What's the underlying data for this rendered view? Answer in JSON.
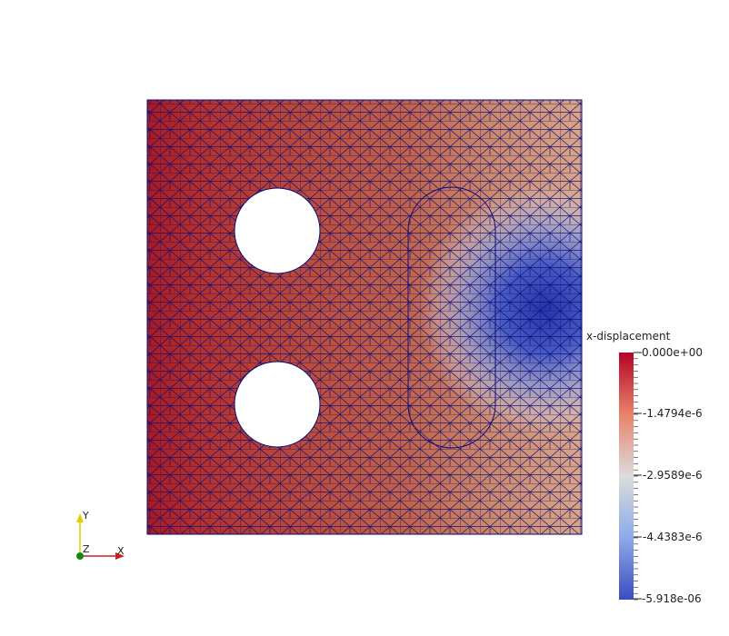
{
  "scalar_field": "x-displacement",
  "colorbar": {
    "title": "x-displacement",
    "ticks": [
      "0.000e+00",
      "-1.4794e-6",
      "-2.9589e-6",
      "-4.4383e-6",
      "-5.918e-06"
    ],
    "range": [
      0.0,
      -5.918e-06
    ],
    "colormap": [
      "#b40426",
      "#dddcdc",
      "#3b4cc0"
    ]
  },
  "axes_triad": {
    "x_label": "X",
    "y_label": "Y",
    "z_label": "Z",
    "x_color": "#cc2020",
    "y_color": "#e0d000",
    "z_color": "#138a13"
  },
  "mesh": {
    "edge_color": "#0a0a7a",
    "holes": [
      "circle-upper",
      "circle-lower",
      "slot"
    ]
  }
}
